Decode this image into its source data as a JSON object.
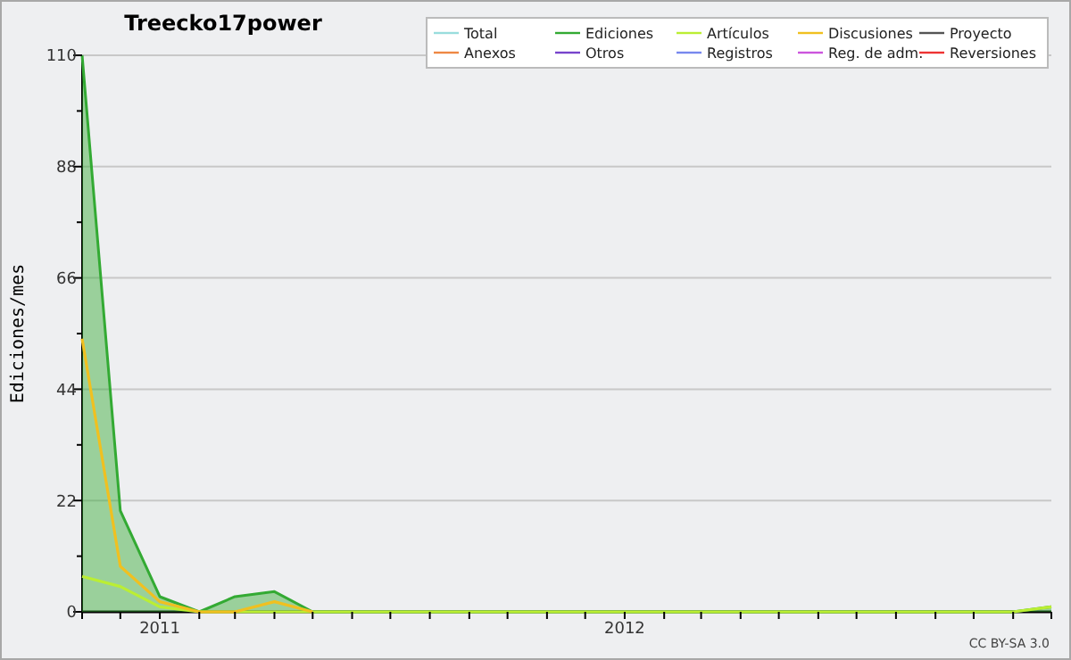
{
  "chart_data": {
    "type": "line",
    "title": "Treecko17power",
    "ylabel": "Ediciones/mes",
    "x": [
      "2010-11",
      "2010-12",
      "2011-01",
      "2011-02",
      "2011-03",
      "2011-04",
      "2011-05",
      "2011-06",
      "2011-07",
      "2011-08",
      "2011-09",
      "2011-10",
      "2011-11",
      "2011-12",
      "2012-01",
      "2012-02",
      "2012-03",
      "2012-04",
      "2012-05",
      "2012-06",
      "2012-07",
      "2012-08",
      "2012-09",
      "2012-10",
      "2012-11",
      "2012-12"
    ],
    "xlim": [
      "2010-11",
      "2012-12"
    ],
    "xticks": [
      {
        "value": "2010-11",
        "label": null
      },
      {
        "value": "2010-12",
        "label": null
      },
      {
        "value": "2011-01",
        "label": "2011"
      },
      {
        "value": "2011-02",
        "label": null
      },
      {
        "value": "2011-03",
        "label": null
      },
      {
        "value": "2011-04",
        "label": null
      },
      {
        "value": "2011-05",
        "label": null
      },
      {
        "value": "2011-06",
        "label": null
      },
      {
        "value": "2011-07",
        "label": null
      },
      {
        "value": "2011-08",
        "label": null
      },
      {
        "value": "2011-09",
        "label": null
      },
      {
        "value": "2011-10",
        "label": null
      },
      {
        "value": "2011-11",
        "label": null
      },
      {
        "value": "2011-12",
        "label": null
      },
      {
        "value": "2012-01",
        "label": "2012"
      },
      {
        "value": "2012-02",
        "label": null
      },
      {
        "value": "2012-03",
        "label": null
      },
      {
        "value": "2012-04",
        "label": null
      },
      {
        "value": "2012-05",
        "label": null
      },
      {
        "value": "2012-06",
        "label": null
      },
      {
        "value": "2012-07",
        "label": null
      },
      {
        "value": "2012-08",
        "label": null
      },
      {
        "value": "2012-09",
        "label": null
      },
      {
        "value": "2012-10",
        "label": null
      },
      {
        "value": "2012-11",
        "label": null
      },
      {
        "value": "2012-12",
        "label": null
      }
    ],
    "ylim": [
      0,
      110
    ],
    "yticks": [
      0,
      {
        "value": 11,
        "label": null
      },
      22,
      {
        "value": 33,
        "label": null
      },
      44,
      {
        "value": 55,
        "label": null
      },
      66,
      {
        "value": 77,
        "label": null
      },
      88,
      {
        "value": 99,
        "label": null
      },
      110
    ],
    "grid": "y",
    "legend": "top right",
    "marker": "none",
    "line_style": "solid",
    "annotations": [
      "CC BY-SA 3.0"
    ],
    "series": [
      {
        "name": "Total",
        "color": "#99dddd",
        "values": [
          null,
          null,
          null,
          null,
          null,
          null,
          null,
          null,
          null,
          null,
          null,
          null,
          null,
          null,
          null,
          null,
          null,
          null,
          null,
          null,
          null,
          null,
          null,
          null,
          null,
          null
        ]
      },
      {
        "name": "Ediciones",
        "type": "area",
        "color": "#33aa33",
        "values": [
          110,
          20,
          3,
          0,
          3,
          4,
          0,
          0,
          0,
          0,
          0,
          0,
          0,
          0,
          0,
          0,
          0,
          0,
          0,
          0,
          0,
          0,
          0,
          0,
          0,
          1
        ]
      },
      {
        "name": "Artículos",
        "color": "#bbee33",
        "values": [
          7,
          5,
          1,
          0,
          0,
          0,
          0,
          0,
          0,
          0,
          0,
          0,
          0,
          0,
          0,
          0,
          0,
          0,
          0,
          0,
          0,
          0,
          0,
          0,
          0,
          1
        ]
      },
      {
        "name": "Discusiones",
        "color": "#f0c020",
        "values": [
          54,
          9,
          2,
          0,
          0,
          2,
          0,
          null,
          null,
          null,
          null,
          null,
          null,
          null,
          null,
          null,
          null,
          null,
          null,
          null,
          null,
          null,
          null,
          null,
          null,
          null
        ]
      },
      {
        "name": "Proyecto",
        "color": "#555555",
        "values": [
          null,
          null,
          null,
          null,
          null,
          null,
          null,
          null,
          null,
          null,
          null,
          null,
          null,
          null,
          null,
          null,
          null,
          null,
          null,
          null,
          null,
          null,
          null,
          null,
          null,
          null
        ]
      },
      {
        "name": "Anexos",
        "color": "#ee8844",
        "values": [
          null,
          null,
          null,
          null,
          null,
          null,
          null,
          null,
          null,
          null,
          null,
          null,
          null,
          null,
          null,
          null,
          null,
          null,
          null,
          null,
          null,
          null,
          null,
          null,
          null,
          null
        ]
      },
      {
        "name": "Otros",
        "color": "#7744cc",
        "values": [
          null,
          null,
          null,
          null,
          null,
          null,
          null,
          null,
          null,
          null,
          null,
          null,
          null,
          null,
          null,
          null,
          null,
          null,
          null,
          null,
          null,
          null,
          null,
          null,
          null,
          null
        ]
      },
      {
        "name": "Registros",
        "color": "#7788ee",
        "values": [
          null,
          null,
          null,
          null,
          null,
          null,
          null,
          null,
          null,
          null,
          null,
          null,
          null,
          null,
          null,
          null,
          null,
          null,
          null,
          null,
          null,
          null,
          null,
          null,
          null,
          null
        ]
      },
      {
        "name": "Reg. de adm.",
        "color": "#cc55dd",
        "values": [
          null,
          null,
          null,
          null,
          null,
          null,
          null,
          null,
          null,
          null,
          null,
          null,
          null,
          null,
          null,
          null,
          null,
          null,
          null,
          null,
          null,
          null,
          null,
          null,
          null,
          null
        ]
      },
      {
        "name": "Reversiones",
        "color": "#ee3333",
        "values": [
          null,
          null,
          null,
          null,
          null,
          null,
          null,
          null,
          null,
          null,
          null,
          null,
          null,
          null,
          null,
          null,
          null,
          null,
          null,
          null,
          null,
          null,
          null,
          null,
          null,
          null
        ]
      }
    ]
  }
}
